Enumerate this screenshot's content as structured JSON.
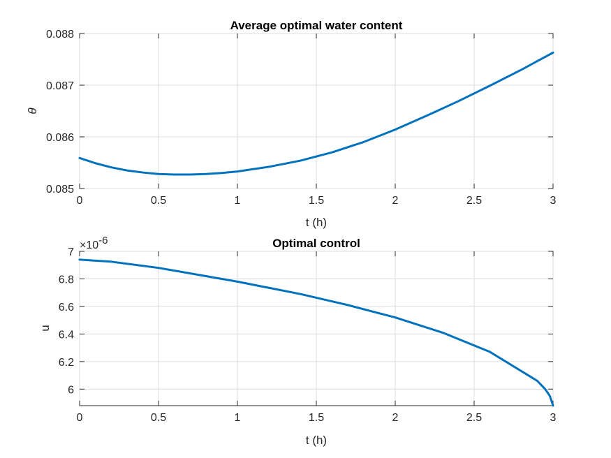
{
  "chart_data": [
    {
      "type": "line",
      "title": "Average optimal water content",
      "xlabel": "t (h)",
      "ylabel": "θ",
      "xlim": [
        0,
        3
      ],
      "ylim": [
        0.085,
        0.088
      ],
      "grid": true,
      "x_ticks": [
        0,
        0.5,
        1,
        1.5,
        2,
        2.5,
        3
      ],
      "x_tick_labels": [
        "0",
        "0.5",
        "1",
        "1.5",
        "2",
        "2.5",
        "3"
      ],
      "y_ticks": [
        0.085,
        0.086,
        0.087,
        0.088
      ],
      "y_tick_labels": [
        "0.085",
        "0.086",
        "0.087",
        "0.088"
      ],
      "color": "#0072bd",
      "series": [
        {
          "name": "theta",
          "x": [
            0,
            0.1,
            0.2,
            0.3,
            0.4,
            0.5,
            0.6,
            0.7,
            0.8,
            0.9,
            1.0,
            1.2,
            1.4,
            1.6,
            1.8,
            2.0,
            2.2,
            2.4,
            2.6,
            2.8,
            3.0
          ],
          "y": [
            0.08559,
            0.08549,
            0.08541,
            0.08535,
            0.08531,
            0.08528,
            0.08527,
            0.08527,
            0.08528,
            0.0853,
            0.08533,
            0.08542,
            0.08554,
            0.0857,
            0.0859,
            0.08614,
            0.08641,
            0.08669,
            0.08699,
            0.0873,
            0.08763
          ]
        }
      ]
    },
    {
      "type": "line",
      "title": "Optimal control",
      "xlabel": "t (h)",
      "ylabel": "u",
      "xlim": [
        0,
        3
      ],
      "ylim": [
        5.88,
        7.0
      ],
      "y_multiplier": "×10",
      "y_exponent": "-6",
      "grid": true,
      "x_ticks": [
        0,
        0.5,
        1,
        1.5,
        2,
        2.5,
        3
      ],
      "x_tick_labels": [
        "0",
        "0.5",
        "1",
        "1.5",
        "2",
        "2.5",
        "3"
      ],
      "y_ticks": [
        6,
        6.2,
        6.4,
        6.6,
        6.8,
        7
      ],
      "y_tick_labels": [
        "6",
        "6.2",
        "6.4",
        "6.6",
        "6.8",
        "7"
      ],
      "color": "#0072bd",
      "series": [
        {
          "name": "u",
          "x": [
            0,
            0.2,
            0.5,
            0.8,
            1.0,
            1.4,
            1.7,
            2.0,
            2.3,
            2.6,
            2.9,
            2.95,
            2.98,
            3.0
          ],
          "y": [
            6.94,
            6.925,
            6.88,
            6.82,
            6.78,
            6.69,
            6.61,
            6.52,
            6.41,
            6.27,
            6.06,
            6.0,
            5.95,
            5.88
          ]
        }
      ]
    }
  ]
}
